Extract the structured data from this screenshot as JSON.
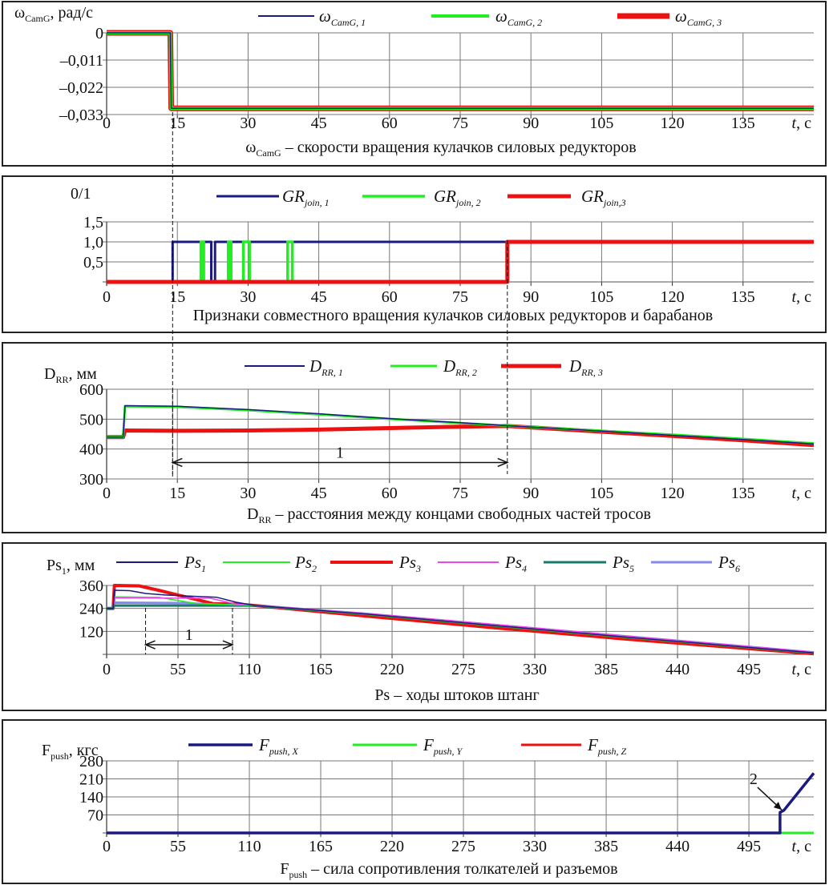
{
  "chart_data": [
    {
      "type": "line",
      "ylabel": {
        "main": "ω",
        "sub": "CamG",
        "unit": ", рад/с"
      },
      "xlabel": {
        "main": "t",
        "unit": ", с"
      },
      "caption": {
        "main": "ω",
        "sub": "CamG",
        "rest": " – скорости вращения кулачков силовых редукторов"
      },
      "xlim": [
        0,
        150
      ],
      "ylim": [
        -0.033,
        0
      ],
      "x_ticks": [
        0,
        15,
        30,
        45,
        60,
        75,
        90,
        105,
        120,
        135
      ],
      "x_tick_labels": [
        "0",
        "15",
        "30",
        "45",
        "60",
        "75",
        "90",
        "105",
        "120",
        "135"
      ],
      "y_ticks": [
        0,
        -0.011,
        -0.022,
        -0.033
      ],
      "y_tick_labels": [
        "0",
        "–0,011",
        "–0,022",
        "–0,033"
      ],
      "grid": true,
      "series": [
        {
          "name_main": "ω",
          "name_sub": "CamG, 1",
          "color": "#1a1a80",
          "points": [
            [
              0,
              0
            ],
            [
              13.5,
              0
            ],
            [
              13.7,
              -0.0305
            ],
            [
              150,
              -0.0305
            ]
          ]
        },
        {
          "name_main": "ω",
          "name_sub": "CamG, 2",
          "color": "#22ee22",
          "points": [
            [
              0,
              0
            ],
            [
              13.5,
              0
            ],
            [
              13.7,
              -0.0305
            ],
            [
              150,
              -0.0305
            ]
          ]
        },
        {
          "name_main": "ω",
          "name_sub": "CamG, 3",
          "color": "#ee1111",
          "points": [
            [
              0,
              0
            ],
            [
              13.5,
              0
            ],
            [
              13.7,
              -0.0305
            ],
            [
              150,
              -0.0305
            ]
          ]
        }
      ]
    },
    {
      "type": "line",
      "ylabel": {
        "main": "0/1",
        "sub": "",
        "unit": ""
      },
      "xlabel": {
        "main": "t",
        "unit": ", с"
      },
      "caption": {
        "main": "",
        "sub": "",
        "rest": "Признаки совместного вращения кулачков силовых редукторов и барабанов"
      },
      "xlim": [
        0,
        150
      ],
      "ylim": [
        0,
        1.5
      ],
      "x_ticks": [
        0,
        15,
        30,
        45,
        60,
        75,
        90,
        105,
        120,
        135
      ],
      "x_tick_labels": [
        "0",
        "15",
        "30",
        "45",
        "60",
        "75",
        "90",
        "105",
        "120",
        "135"
      ],
      "y_ticks": [
        0.5,
        1.0,
        1.5
      ],
      "y_tick_labels": [
        "0,5",
        "1,0",
        "1,5"
      ],
      "grid": true,
      "series": [
        {
          "name_main": "GR",
          "name_sub": "join, 1",
          "color": "#1a1a80",
          "points": [
            [
              0,
              0
            ],
            [
              14,
              0
            ],
            [
              14,
              1
            ],
            [
              22.2,
              1
            ],
            [
              22.2,
              0
            ],
            [
              23,
              0
            ],
            [
              23,
              1
            ],
            [
              150,
              1
            ]
          ]
        },
        {
          "name_main": "GR",
          "name_sub": "join, 2",
          "color": "#22ee22",
          "points": [
            [
              0,
              0
            ],
            [
              20,
              0
            ],
            [
              20,
              1
            ],
            [
              20.6,
              1
            ],
            [
              20.6,
              0
            ],
            [
              25.8,
              0
            ],
            [
              25.8,
              1
            ],
            [
              26.4,
              1
            ],
            [
              26.4,
              0
            ],
            [
              29,
              0
            ],
            [
              29,
              1
            ],
            [
              30.3,
              1
            ],
            [
              30.3,
              0
            ],
            [
              38.4,
              0
            ],
            [
              38.4,
              1
            ],
            [
              39.4,
              1
            ],
            [
              39.4,
              0
            ],
            [
              85,
              0
            ],
            [
              85,
              1
            ],
            [
              150,
              1
            ]
          ]
        },
        {
          "name_main": "GR",
          "name_sub": "join,3",
          "color": "#ee1111",
          "points": [
            [
              0,
              0
            ],
            [
              85,
              0
            ],
            [
              85,
              1
            ],
            [
              150,
              1
            ]
          ]
        }
      ]
    },
    {
      "type": "line",
      "ylabel": {
        "main": "D",
        "sub": "RR",
        "unit": ", мм"
      },
      "xlabel": {
        "main": "t",
        "unit": ", с"
      },
      "caption": {
        "main": "D",
        "sub": "RR",
        "rest": " – расстояния между концами свободных частей тросов"
      },
      "xlim": [
        0,
        150
      ],
      "ylim": [
        300,
        600
      ],
      "x_ticks": [
        0,
        15,
        30,
        45,
        60,
        75,
        90,
        105,
        120,
        135
      ],
      "x_tick_labels": [
        "0",
        "15",
        "30",
        "45",
        "60",
        "75",
        "90",
        "105",
        "120",
        "135"
      ],
      "y_ticks": [
        300,
        400,
        500,
        600
      ],
      "y_tick_labels": [
        "300",
        "400",
        "500",
        "600"
      ],
      "grid": true,
      "annotation": {
        "label": "1",
        "from": 14,
        "to": 85,
        "y": 355
      },
      "series": [
        {
          "name_main": "D",
          "name_sub": "RR, 1",
          "color": "#1a1a80",
          "points": [
            [
              0,
              440
            ],
            [
              3.5,
              440
            ],
            [
              3.9,
              545
            ],
            [
              15,
              543
            ],
            [
              30,
              532
            ],
            [
              45,
              518
            ],
            [
              60,
              502
            ],
            [
              75,
              488
            ],
            [
              85,
              478
            ],
            [
              105,
              460
            ],
            [
              120,
              446
            ],
            [
              135,
              432
            ],
            [
              150,
              417
            ]
          ]
        },
        {
          "name_main": "D",
          "name_sub": "RR, 2",
          "color": "#22ee22",
          "points": [
            [
              0,
              440
            ],
            [
              3.5,
              440
            ],
            [
              3.9,
              543
            ],
            [
              15,
              541
            ],
            [
              30,
              530
            ],
            [
              45,
              516
            ],
            [
              60,
              501
            ],
            [
              75,
              487
            ],
            [
              85,
              478
            ],
            [
              105,
              461
            ],
            [
              120,
              448
            ],
            [
              135,
              434
            ],
            [
              150,
              419
            ]
          ]
        },
        {
          "name_main": "D",
          "name_sub": "RR, 3",
          "color": "#ee1111",
          "points": [
            [
              0,
              440
            ],
            [
              3.5,
              440
            ],
            [
              3.9,
              462
            ],
            [
              15,
              461
            ],
            [
              30,
              462
            ],
            [
              45,
              465
            ],
            [
              60,
              470
            ],
            [
              75,
              475
            ],
            [
              85,
              477
            ],
            [
              105,
              458
            ],
            [
              120,
              444
            ],
            [
              135,
              429
            ],
            [
              150,
              413
            ]
          ]
        }
      ]
    },
    {
      "type": "line",
      "ylabel": {
        "main": "Ps",
        "sub": "1",
        "unit": ", мм"
      },
      "xlabel": {
        "main": "t",
        "unit": ", с"
      },
      "caption": {
        "main": "Ps",
        "sub": "",
        "rest": " – ходы штоков штанг"
      },
      "xlim": [
        0,
        545
      ],
      "ylim": [
        0,
        360
      ],
      "x_ticks": [
        0,
        55,
        110,
        165,
        220,
        275,
        330,
        385,
        440,
        495
      ],
      "x_tick_labels": [
        "0",
        "55",
        "110",
        "165",
        "220",
        "275",
        "330",
        "385",
        "440",
        "495"
      ],
      "y_ticks": [
        120,
        240,
        360
      ],
      "y_tick_labels": [
        "120",
        "240",
        "360"
      ],
      "grid": true,
      "annotation": {
        "label": "1",
        "from": 30,
        "to": 97,
        "y": 50
      },
      "series": [
        {
          "name_main": "Ps",
          "name_sub": "1",
          "color": "#1a1a80",
          "points": [
            [
              0,
              240
            ],
            [
              5,
              240
            ],
            [
              6,
              335
            ],
            [
              18,
              333
            ],
            [
              30,
              318
            ],
            [
              45,
              310
            ],
            [
              85,
              298
            ],
            [
              100,
              272
            ],
            [
              115,
              255
            ],
            [
              200,
              210
            ],
            [
              300,
              150
            ],
            [
              400,
              90
            ],
            [
              545,
              8
            ]
          ]
        },
        {
          "name_main": "Ps",
          "name_sub": "2",
          "color": "#22ee22",
          "points": [
            [
              0,
              240
            ],
            [
              5,
              240
            ],
            [
              6,
              300
            ],
            [
              40,
              298
            ],
            [
              70,
              265
            ],
            [
              110,
              256
            ],
            [
              115,
              254
            ],
            [
              200,
              208
            ],
            [
              300,
              148
            ],
            [
              400,
              88
            ],
            [
              545,
              7
            ]
          ]
        },
        {
          "name_main": "Ps",
          "name_sub": "3",
          "color": "#ee1111",
          "points": [
            [
              0,
              240
            ],
            [
              5,
              240
            ],
            [
              6,
              360
            ],
            [
              25,
              358
            ],
            [
              40,
              335
            ],
            [
              55,
              310
            ],
            [
              70,
              285
            ],
            [
              82,
              265
            ],
            [
              100,
              262
            ],
            [
              115,
              255
            ],
            [
              200,
              200
            ],
            [
              300,
              138
            ],
            [
              400,
              80
            ],
            [
              545,
              3
            ]
          ]
        },
        {
          "name_main": "Ps",
          "name_sub": "4",
          "color": "#ee44ee",
          "points": [
            [
              0,
              240
            ],
            [
              5,
              240
            ],
            [
              6,
              295
            ],
            [
              80,
              293
            ],
            [
              100,
              262
            ],
            [
              115,
              256
            ],
            [
              200,
              214
            ],
            [
              300,
              156
            ],
            [
              400,
              96
            ],
            [
              545,
              12
            ]
          ]
        },
        {
          "name_main": "Ps",
          "name_sub": "5",
          "color": "#1a7a6a",
          "points": [
            [
              0,
              240
            ],
            [
              5,
              240
            ],
            [
              6,
              255
            ],
            [
              110,
              255
            ],
            [
              115,
              254
            ],
            [
              200,
              210
            ],
            [
              300,
              150
            ],
            [
              400,
              92
            ],
            [
              545,
              8
            ]
          ]
        },
        {
          "name_main": "Ps",
          "name_sub": "6",
          "color": "#8888ee",
          "points": [
            [
              0,
              240
            ],
            [
              5,
              240
            ],
            [
              6,
              270
            ],
            [
              60,
              268
            ],
            [
              90,
              258
            ],
            [
              115,
              255
            ],
            [
              200,
              212
            ],
            [
              300,
              153
            ],
            [
              400,
              94
            ],
            [
              545,
              10
            ]
          ]
        }
      ]
    },
    {
      "type": "line",
      "ylabel": {
        "main": "F",
        "sub": "push",
        "unit": ", кгс"
      },
      "xlabel": {
        "main": "t",
        "unit": ", с"
      },
      "caption": {
        "main": "F",
        "sub": "push",
        "rest": " – сила сопротивления толкателей и разъемов"
      },
      "xlim": [
        0,
        545
      ],
      "ylim": [
        0,
        280
      ],
      "x_ticks": [
        0,
        55,
        110,
        165,
        220,
        275,
        330,
        385,
        440,
        495
      ],
      "x_tick_labels": [
        "0",
        "55",
        "110",
        "165",
        "220",
        "275",
        "330",
        "385",
        "440",
        "495"
      ],
      "y_ticks": [
        70,
        140,
        210,
        280
      ],
      "y_tick_labels": [
        "70",
        "140",
        "210",
        "280"
      ],
      "grid": true,
      "annotation": {
        "label": "2",
        "x": 519,
        "y": 90
      },
      "series": [
        {
          "name_main": "F",
          "name_sub": "push, X",
          "color": "#1a1a80",
          "points": [
            [
              0,
              0
            ],
            [
              519,
              0
            ],
            [
              519,
              80
            ],
            [
              522,
              88
            ],
            [
              545,
              232
            ]
          ]
        },
        {
          "name_main": "F",
          "name_sub": "push, Y",
          "color": "#22ee22",
          "points": [
            [
              0,
              0
            ],
            [
              545,
              0
            ]
          ]
        },
        {
          "name_main": "F",
          "name_sub": "push, Z",
          "color": "#ee1111",
          "points": [
            [
              0,
              0
            ],
            [
              519,
              0
            ]
          ]
        }
      ]
    }
  ]
}
